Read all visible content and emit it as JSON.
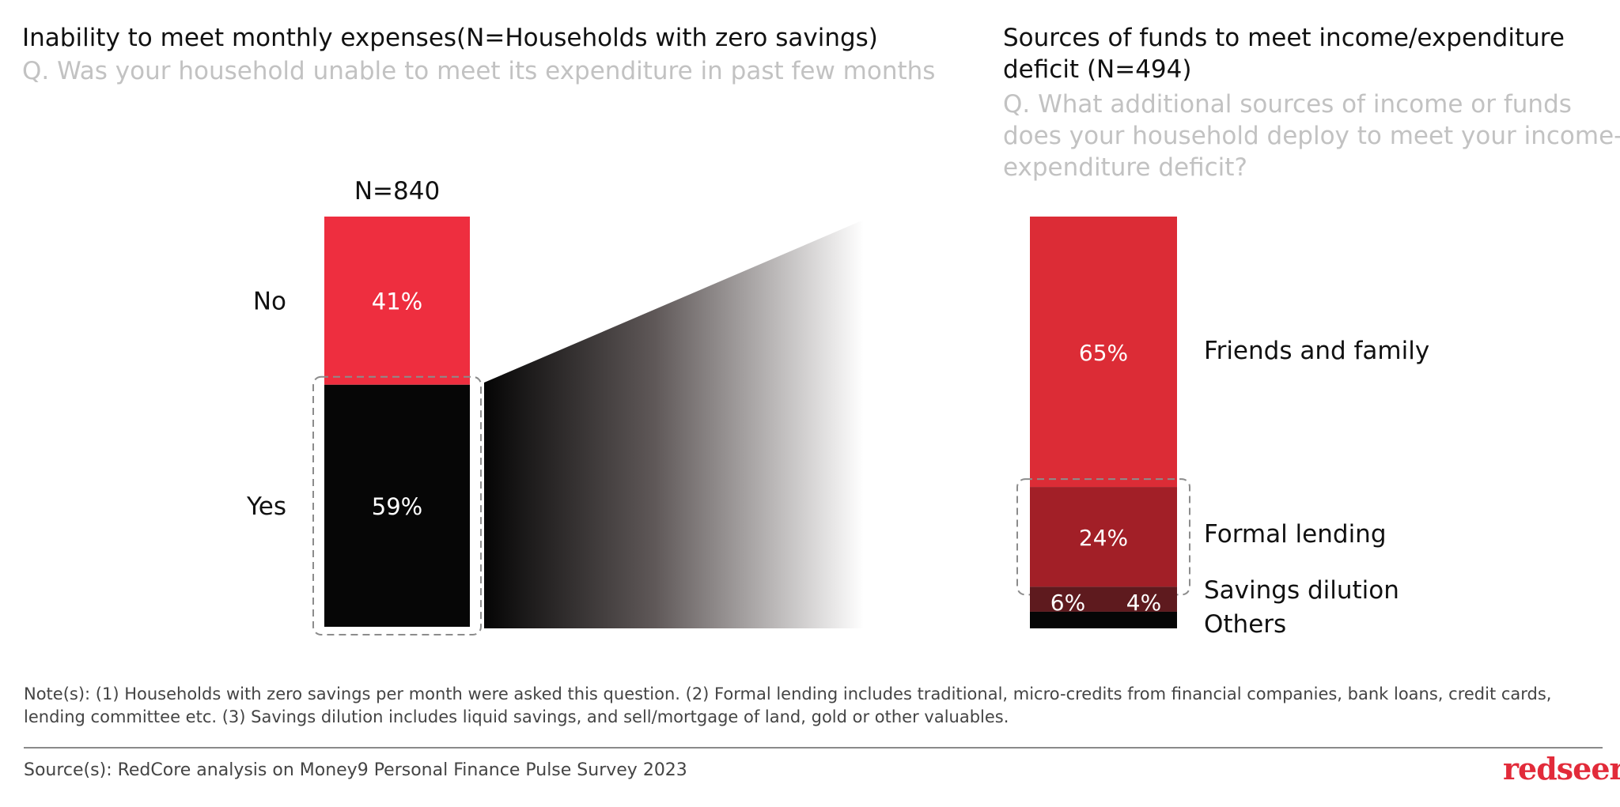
{
  "left_chart": {
    "title": "Inability to meet monthly expenses(N=Households with zero savings)",
    "question": "Q. Was your household unable to meet  its expenditure in past few months"
  },
  "right_chart": {
    "title": "Sources of funds to meet income/expenditure deficit (N=494)",
    "question": "Q. What additional sources of income or funds does your household deploy to meet your income-expenditure deficit?"
  },
  "chart_data": [
    {
      "type": "bar",
      "stacked": true,
      "title": "Inability to meet monthly expenses(N=Households with zero savings)",
      "sample_label": "N=840",
      "categories": [
        "No",
        "Yes"
      ],
      "values": [
        41,
        59
      ],
      "value_labels": [
        "41%",
        "59%"
      ],
      "colors": [
        "#ee2e3f",
        "#060606"
      ],
      "highlight": "Yes"
    },
    {
      "type": "bar",
      "stacked": true,
      "title": "Sources of funds to meet income/expenditure deficit (N=494)",
      "categories": [
        "Friends and family",
        "Formal lending",
        "Savings dilution",
        "Others"
      ],
      "values": [
        65,
        24,
        6,
        4
      ],
      "value_labels": [
        "65%",
        "24%",
        "6%",
        "4%"
      ],
      "colors": [
        "#dc2c36",
        "#a21f27",
        "#5e1a1e",
        "#060606"
      ],
      "highlight": "Formal lending"
    }
  ],
  "footer": {
    "notes": "Note(s): (1) Households with zero savings per month were asked this question. (2) Formal lending includes traditional, micro-credits from financial companies, bank loans, credit cards, lending committee etc. (3) Savings dilution includes liquid savings, and sell/mortgage of land, gold or other valuables.",
    "source": "Source(s): RedCore analysis on Money9 Personal Finance Pulse Survey 2023",
    "brand": "redseer"
  }
}
